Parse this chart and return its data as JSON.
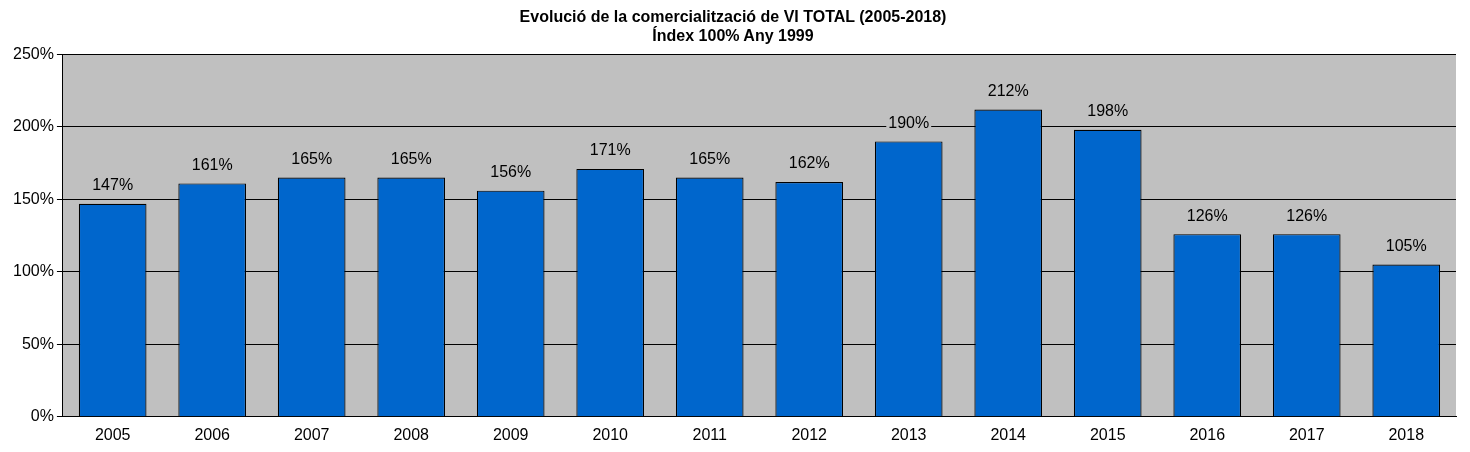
{
  "chart_data": {
    "type": "bar",
    "title": "Evolució de la comercialització de VI TOTAL (2005-2018)",
    "subtitle": "Índex 100% Any 1999",
    "categories": [
      "2005",
      "2006",
      "2007",
      "2008",
      "2009",
      "2010",
      "2011",
      "2012",
      "2013",
      "2014",
      "2015",
      "2016",
      "2017",
      "2018"
    ],
    "values": [
      147,
      161,
      165,
      165,
      156,
      171,
      165,
      162,
      190,
      212,
      198,
      126,
      126,
      105
    ],
    "value_labels": [
      "147%",
      "161%",
      "165%",
      "165%",
      "156%",
      "171%",
      "165%",
      "162%",
      "190%",
      "212%",
      "198%",
      "126%",
      "126%",
      "105%"
    ],
    "color": "#0066cc",
    "ylim": [
      0,
      250
    ],
    "yticks": [
      {
        "value": 0,
        "label": "0%"
      },
      {
        "value": 50,
        "label": "50%"
      },
      {
        "value": 100,
        "label": "100%"
      },
      {
        "value": 150,
        "label": "150%"
      },
      {
        "value": 200,
        "label": "200%"
      },
      {
        "value": 250,
        "label": "250%"
      }
    ],
    "grid": "y",
    "legend": false
  }
}
